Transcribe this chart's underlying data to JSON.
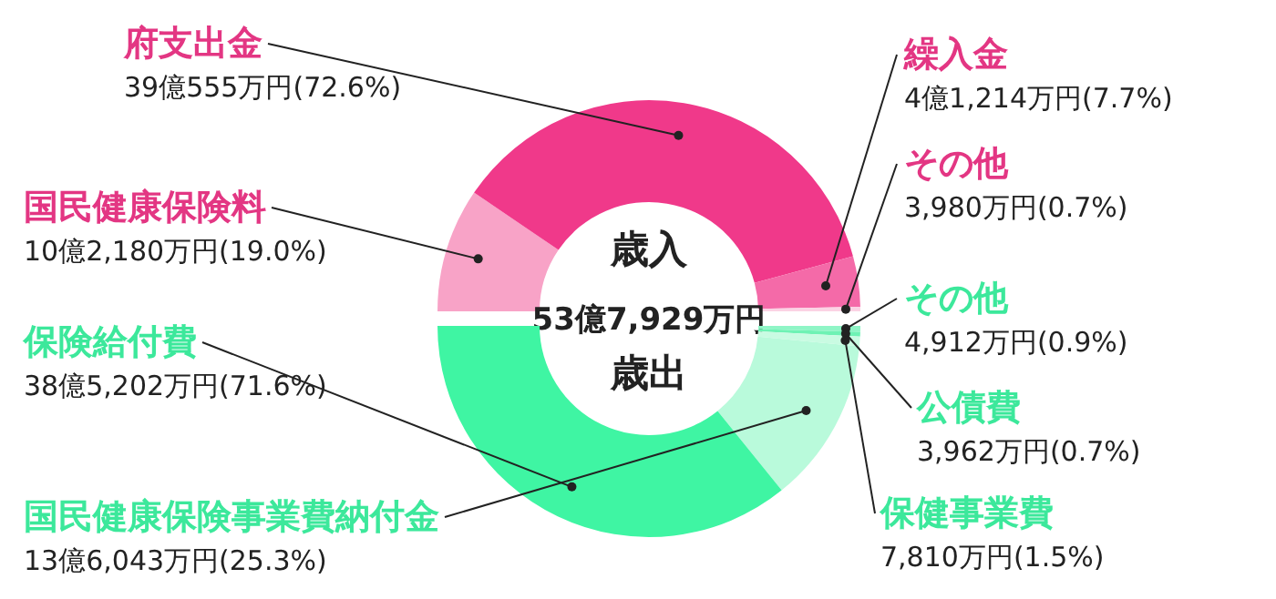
{
  "chart_data": [
    {
      "type": "donut",
      "title": "歳入",
      "categories": [
        "国民健康保険料",
        "府支出金",
        "繰入金",
        "その他"
      ],
      "values": [
        19.0,
        72.6,
        7.7,
        0.7
      ],
      "colors": [
        "#f8a3c7",
        "#f0398a",
        "#f46aa8",
        "#fbd3e4"
      ],
      "value_labels": [
        "10億2,180万円(19.0%)",
        "39億555万円(72.6%)",
        "4億1,214万円(7.7%)",
        "3,980万円(0.7%)"
      ],
      "annotations": [
        "53億7,929万円"
      ]
    },
    {
      "type": "donut",
      "title": "歳出",
      "categories": [
        "その他",
        "公債費",
        "保健事業費",
        "国民健康保険事業費納付金",
        "保険給付費"
      ],
      "values": [
        0.9,
        0.7,
        1.5,
        25.3,
        71.6
      ],
      "colors": [
        "#8ff5c6",
        "#6ef2b4",
        "#c9fbe2",
        "#b9fadb",
        "#3ff5a3"
      ],
      "value_labels": [
        "4,912万円(0.9%)",
        "3,962万円(0.7%)",
        "7,810万円(1.5%)",
        "13億6,043万円(25.3%)",
        "38億5,202万円(71.6%)"
      ]
    }
  ]
}
